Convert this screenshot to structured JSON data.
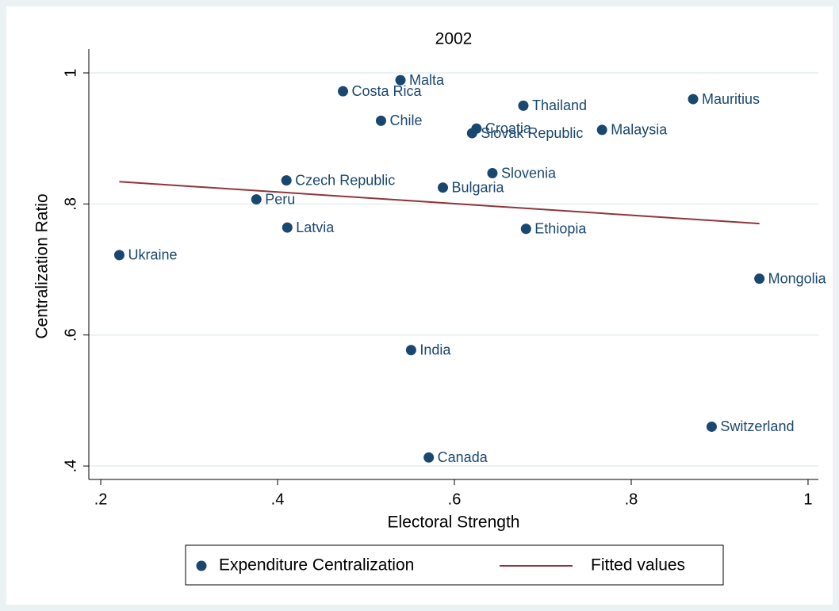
{
  "chart_data": {
    "type": "scatter",
    "title": "2002",
    "x_label": "Electoral Strength",
    "y_label": "Centralization Ratio",
    "xlim": [
      0.1865,
      1.0117
    ],
    "ylim": [
      0.3795,
      1.0363
    ],
    "xticks": [
      {
        "value": 0.2,
        "label": ".2"
      },
      {
        "value": 0.4,
        "label": ".4"
      },
      {
        "value": 0.6,
        "label": ".6"
      },
      {
        "value": 0.8,
        "label": ".8"
      },
      1
    ],
    "yticks": [
      {
        "value": 0.4,
        "label": ".4"
      },
      {
        "value": 0.6,
        "label": ".6"
      },
      {
        "value": 0.8,
        "label": ".8"
      },
      1
    ],
    "grid": true,
    "legend_position": "bottom",
    "series": [
      {
        "name": "Expenditure Centralization",
        "type": "scatter",
        "color": "#1a476f",
        "labels": [
          "Ukraine",
          "Peru",
          "Czech Republic",
          "Latvia",
          "Costa Rica",
          "Chile",
          "Malta",
          "India",
          "Canada",
          "Bulgaria",
          "Croatia",
          "Slovak Republic",
          "Slovenia",
          "Thailand",
          "Ethiopia",
          "Malaysia",
          "Mauritius",
          "Switzerland",
          "Mongolia"
        ],
        "x": [
          0.221,
          0.376,
          0.41,
          0.411,
          0.474,
          0.517,
          0.539,
          0.551,
          0.571,
          0.587,
          0.625,
          0.62,
          0.643,
          0.678,
          0.681,
          0.767,
          0.87,
          0.891,
          0.945
        ],
        "values": [
          0.722,
          0.807,
          0.836,
          0.764,
          0.972,
          0.927,
          0.989,
          0.577,
          0.413,
          0.825,
          0.915,
          0.908,
          0.847,
          0.95,
          0.762,
          0.913,
          0.96,
          0.46,
          0.686
        ]
      },
      {
        "name": "Fitted values",
        "type": "line",
        "color": "#90353b",
        "x": [
          0.221,
          0.945
        ],
        "values": [
          0.834,
          0.77
        ]
      }
    ]
  }
}
